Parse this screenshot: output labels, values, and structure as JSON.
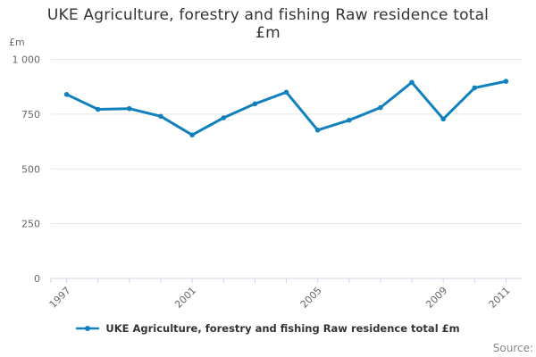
{
  "header": {
    "title_line1": "UKE Agriculture, forestry and fishing Raw residence total",
    "title_line2": "£m"
  },
  "chart_data": {
    "type": "line",
    "title": "UKE Agriculture, forestry and fishing Raw residence total £m",
    "y_axis_title": "£m",
    "categories": [
      "1997",
      "1998",
      "1999",
      "2000",
      "2001",
      "2002",
      "2003",
      "2004",
      "2005",
      "2006",
      "2007",
      "2008",
      "2009",
      "2010",
      "2011"
    ],
    "values": [
      840,
      772,
      775,
      740,
      655,
      733,
      797,
      850,
      677,
      722,
      780,
      895,
      728,
      870,
      900
    ],
    "series_name": "UKE Agriculture, forestry and fishing Raw residence total £m",
    "ylim": [
      0,
      1000
    ],
    "y_ticks": [
      {
        "value": 0,
        "label": "0"
      },
      {
        "value": 250,
        "label": "250"
      },
      {
        "value": 500,
        "label": "500"
      },
      {
        "value": 750,
        "label": "750"
      },
      {
        "value": 1000,
        "label": "1 000"
      }
    ],
    "x_label_indices": [
      0,
      4,
      8,
      12,
      14
    ],
    "x_label_rotation": -45,
    "grid": true,
    "legend_position": "bottom",
    "marker": "circle",
    "colors": {
      "line": "#1380BE",
      "grid": "#e6e6e6",
      "axis": "#ccd6eb",
      "tick_label": "#666666",
      "title": "#333333",
      "legend_text": "#333333",
      "source_text": "#888888"
    }
  },
  "legend": {
    "label": "UKE Agriculture, forestry and fishing Raw residence total £m"
  },
  "footer": {
    "source_label": "Source:"
  }
}
